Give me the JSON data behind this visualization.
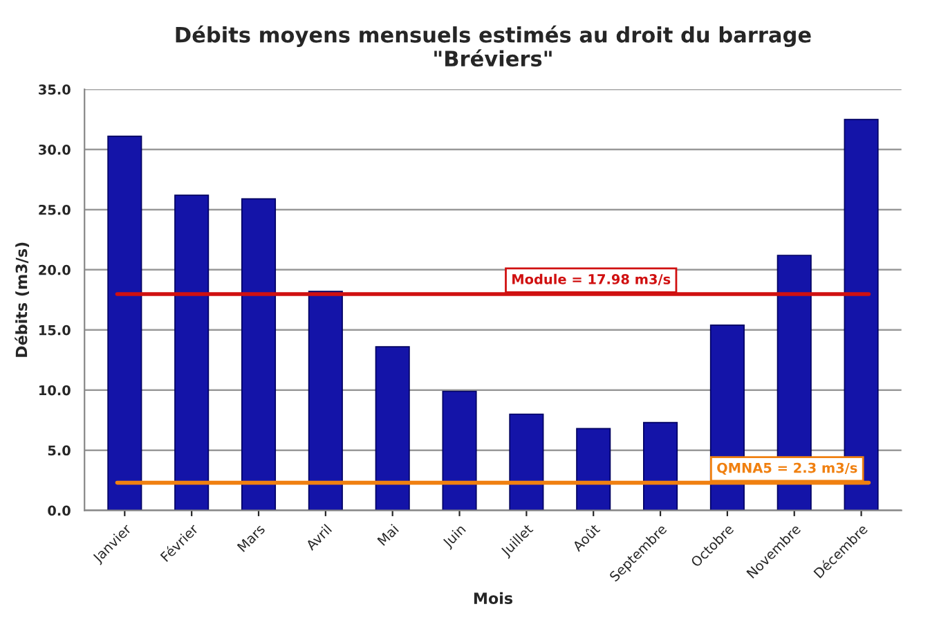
{
  "chart_data": {
    "type": "bar",
    "title": "Débits moyens mensuels estimés au droit du barrage\n\"Bréviers\"",
    "xlabel": "Mois",
    "ylabel": "Débits (m3/s)",
    "categories": [
      "Janvier",
      "Février",
      "Mars",
      "Avril",
      "Mai",
      "Juin",
      "Juillet",
      "Août",
      "Septembre",
      "Octobre",
      "Novembre",
      "Décembre"
    ],
    "values": [
      31.1,
      26.2,
      25.9,
      18.2,
      13.6,
      9.9,
      8.0,
      6.8,
      7.3,
      15.4,
      21.2,
      32.5
    ],
    "color": "#1414a8",
    "ylim": [
      0,
      35
    ],
    "yticks": [
      {
        "value": 0,
        "label": "0.0"
      },
      {
        "value": 5,
        "label": "5.0"
      },
      {
        "value": 10,
        "label": "10.0"
      },
      {
        "value": 15,
        "label": "15.0"
      },
      {
        "value": 20,
        "label": "20.0"
      },
      {
        "value": 25,
        "label": "25.0"
      },
      {
        "value": 30,
        "label": "30.0"
      },
      {
        "value": 35,
        "label": "35.0"
      }
    ],
    "grid": "y",
    "ref_lines": [
      {
        "axis": "y",
        "value": 17.98,
        "label": "Module = 17.98 m3/s",
        "color": "#d01010"
      },
      {
        "axis": "y",
        "value": 2.3,
        "label": "QMNA5 = 2.3 m3/s",
        "color": "#f08010"
      }
    ]
  }
}
